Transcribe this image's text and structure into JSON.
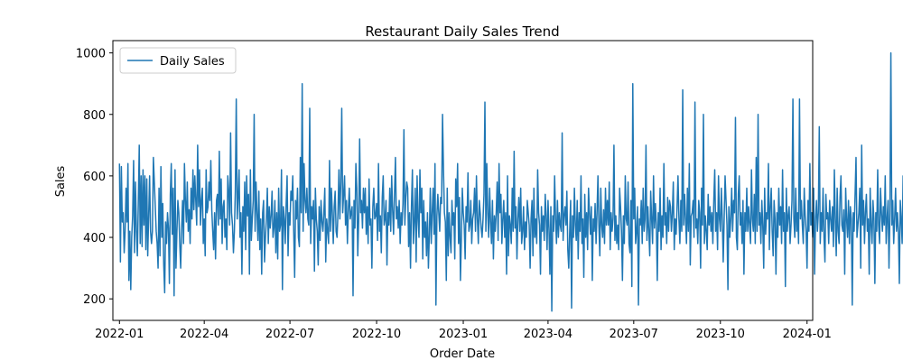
{
  "chart_data": {
    "type": "line",
    "title": "Restaurant Daily Sales Trend",
    "xlabel": "Order Date",
    "ylabel": "Sales",
    "x_range": [
      "2021-12-25",
      "2024-01-07"
    ],
    "ylim": [
      130,
      1040
    ],
    "x_ticks": [
      {
        "date": "2022-01-01",
        "label": "2022-01"
      },
      {
        "date": "2022-04-01",
        "label": "2022-04"
      },
      {
        "date": "2022-07-01",
        "label": "2022-07"
      },
      {
        "date": "2022-10-01",
        "label": "2022-10"
      },
      {
        "date": "2023-01-01",
        "label": "2023-01"
      },
      {
        "date": "2023-04-01",
        "label": "2023-04"
      },
      {
        "date": "2023-07-01",
        "label": "2023-07"
      },
      {
        "date": "2023-10-01",
        "label": "2023-10"
      },
      {
        "date": "2024-01-01",
        "label": "2024-01"
      }
    ],
    "y_ticks": [
      200,
      400,
      600,
      800,
      1000
    ],
    "legend": {
      "position": "upper-left",
      "entries": [
        "Daily Sales"
      ]
    },
    "grid": false,
    "series": [
      {
        "name": "Daily Sales",
        "color": "#1f77b4",
        "x_start": "2022-01-01",
        "x_step_days": 1,
        "values": [
          640,
          320,
          630,
          450,
          480,
          350,
          420,
          560,
          450,
          640,
          260,
          420,
          230,
          400,
          470,
          650,
          350,
          580,
          420,
          340,
          510,
          700,
          380,
          600,
          370,
          620,
          440,
          600,
          360,
          590,
          340,
          470,
          600,
          420,
          380,
          420,
          660,
          580,
          500,
          420,
          380,
          300,
          560,
          340,
          630,
          400,
          510,
          310,
          220,
          450,
          380,
          480,
          430,
          250,
          540,
          640,
          410,
          560,
          210,
          620,
          300,
          420,
          520,
          480,
          380,
          300,
          430,
          520,
          380,
          640,
          520,
          450,
          580,
          420,
          490,
          380,
          560,
          460,
          620,
          490,
          600,
          520,
          440,
          700,
          500,
          620,
          440,
          520,
          560,
          380,
          460,
          340,
          620,
          480,
          500,
          580,
          520,
          650,
          490,
          420,
          360,
          480,
          330,
          520,
          540,
          440,
          680,
          460,
          590,
          380,
          500,
          520,
          400,
          460,
          360,
          600,
          550,
          440,
          740,
          480,
          440,
          350,
          420,
          550,
          850,
          460,
          530,
          620,
          400,
          480,
          280,
          500,
          420,
          580,
          360,
          600,
          470,
          540,
          280,
          620,
          390,
          460,
          520,
          800,
          420,
          580,
          480,
          390,
          550,
          360,
          460,
          280,
          480,
          520,
          320,
          400,
          460,
          560,
          380,
          500,
          430,
          470,
          550,
          400,
          430,
          520,
          350,
          480,
          330,
          560,
          420,
          440,
          620,
          230,
          500,
          460,
          380,
          510,
          600,
          340,
          480,
          440,
          550,
          520,
          600,
          420,
          270,
          520,
          460,
          560,
          400,
          370,
          660,
          480,
          900,
          420,
          640,
          520,
          480,
          560,
          460,
          440,
          820,
          380,
          500,
          460,
          520,
          290,
          560,
          460,
          420,
          310,
          500,
          390,
          520,
          450,
          420,
          480,
          560,
          320,
          460,
          420,
          380,
          650,
          420,
          560,
          480,
          380,
          500,
          550,
          420,
          400,
          480,
          620,
          460,
          580,
          820,
          480,
          540,
          600,
          440,
          520,
          380,
          490,
          560,
          460,
          480,
          500,
          210,
          520,
          430,
          640,
          560,
          340,
          460,
          720,
          480,
          520,
          430,
          560,
          480,
          560,
          410,
          500,
          380,
          590,
          440,
          460,
          300,
          500,
          560,
          460,
          470,
          510,
          390,
          640,
          420,
          470,
          350,
          530,
          600,
          440,
          460,
          520,
          310,
          480,
          440,
          560,
          420,
          600,
          490,
          410,
          540,
          660,
          460,
          500,
          430,
          520,
          380,
          480,
          440,
          510,
          750,
          440,
          530,
          580,
          560,
          370,
          480,
          300,
          500,
          620,
          380,
          450,
          560,
          320,
          600,
          460,
          400,
          620,
          480,
          560,
          330,
          520,
          400,
          450,
          340,
          480,
          300,
          410,
          560,
          380,
          480,
          560,
          410,
          640,
          180,
          470,
          540,
          480,
          420,
          530,
          510,
          800,
          620,
          480,
          450,
          260,
          560,
          340,
          480,
          400,
          350,
          520,
          440,
          480,
          330,
          590,
          500,
          640,
          380,
          530,
          260,
          400,
          560,
          480,
          440,
          330,
          500,
          450,
          610,
          420,
          440,
          520,
          380,
          460,
          480,
          560,
          420,
          600,
          460,
          380,
          520,
          480,
          430,
          400,
          460,
          540,
          840,
          420,
          640,
          480,
          400,
          560,
          450,
          380,
          520,
          330,
          470,
          420,
          480,
          580,
          390,
          640,
          480,
          540,
          380,
          460,
          520,
          400,
          480,
          280,
          600,
          340,
          470,
          440,
          380,
          560,
          420,
          680,
          430,
          500,
          330,
          460,
          530,
          420,
          560,
          380,
          420,
          500,
          360,
          450,
          400,
          520,
          480,
          440,
          300,
          460,
          520,
          340,
          560,
          400,
          460,
          380,
          620,
          480,
          440,
          280,
          500,
          420,
          470,
          390,
          540,
          470,
          360,
          520,
          430,
          280,
          500,
          160,
          470,
          420,
          600,
          460,
          380,
          520,
          400,
          480,
          440,
          420,
          740,
          390,
          470,
          500,
          440,
          550,
          360,
          300,
          420,
          520,
          170,
          470,
          400,
          560,
          440,
          390,
          520,
          330,
          480,
          420,
          600,
          380,
          460,
          270,
          540,
          400,
          480,
          360,
          560,
          480,
          410,
          500,
          260,
          460,
          420,
          510,
          380,
          480,
          600,
          440,
          340,
          560,
          440,
          400,
          490,
          380,
          560,
          440,
          520,
          440,
          580,
          360,
          480,
          420,
          460,
          700,
          390,
          470,
          380,
          440,
          360,
          560,
          500,
          420,
          260,
          470,
          380,
          600,
          460,
          440,
          580,
          380,
          350,
          520,
          240,
          900,
          460,
          560,
          380,
          420,
          500,
          180,
          460,
          440,
          520,
          380,
          560,
          420,
          460,
          700,
          390,
          500,
          420,
          340,
          550,
          460,
          380,
          600,
          430,
          510,
          440,
          260,
          480,
          420,
          560,
          360,
          470,
          400,
          640,
          440,
          480,
          380,
          530,
          420,
          520,
          500,
          420,
          480,
          580,
          360,
          460,
          410,
          500,
          600,
          460,
          380,
          520,
          420,
          880,
          440,
          540,
          460,
          380,
          560,
          420,
          640,
          310,
          470,
          480,
          520,
          400,
          840,
          430,
          460,
          380,
          520,
          480,
          300,
          560,
          440,
          800,
          380,
          470,
          420,
          360,
          540,
          440,
          500,
          420,
          480,
          380,
          520,
          620,
          420,
          480,
          360,
          600,
          460,
          420,
          560,
          460,
          320,
          460,
          600,
          520,
          440,
          230,
          500,
          400,
          460,
          560,
          420,
          520,
          480,
          790,
          400,
          360,
          540,
          600,
          440,
          480,
          380,
          520,
          280,
          480,
          420,
          560,
          420,
          500,
          440,
          380,
          620,
          460,
          420,
          540,
          380,
          660,
          420,
          800,
          440,
          480,
          380,
          520,
          440,
          300,
          560,
          410,
          480,
          460,
          640,
          360,
          500,
          560,
          420,
          340,
          520,
          460,
          280,
          480,
          400,
          560,
          440,
          500,
          380,
          620,
          420,
          480,
          240,
          560,
          420,
          470,
          500,
          380,
          440,
          520,
          850,
          460,
          400,
          560,
          420,
          480,
          380,
          850,
          460,
          520,
          440,
          380,
          560,
          470,
          420,
          300,
          520,
          420,
          640,
          440,
          480,
          400,
          560,
          280,
          460,
          520,
          420,
          480,
          760,
          380,
          480,
          420,
          560,
          400,
          320,
          540,
          460,
          480,
          380,
          520,
          460,
          420,
          500,
          370,
          620,
          460,
          340,
          560,
          420,
          380,
          530,
          600,
          440,
          420,
          490,
          280,
          560,
          460,
          400,
          520,
          380,
          500,
          460,
          180,
          480,
          420,
          540,
          660,
          400,
          440,
          480,
          560,
          300,
          700,
          440,
          520,
          380,
          480,
          540,
          420,
          460,
          280,
          560,
          440,
          380,
          520,
          460,
          250,
          480,
          420,
          620,
          440,
          380,
          560,
          480,
          420,
          500,
          440,
          600,
          380,
          460,
          520,
          300,
          480,
          1000,
          440,
          520,
          380,
          460,
          560,
          420,
          480,
          420,
          250,
          520,
          460,
          380,
          600,
          440,
          500,
          420,
          300,
          480,
          650,
          440,
          520,
          380,
          460,
          480,
          310,
          620,
          440,
          560,
          400,
          480,
          770,
          420,
          520,
          480,
          440,
          680,
          380,
          460,
          420,
          300,
          340
        ]
      }
    ]
  }
}
